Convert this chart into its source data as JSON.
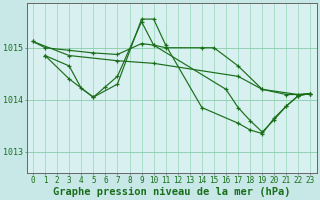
{
  "background_color": "#c8e8e8",
  "plot_bg_color": "#d8f0f0",
  "grid_color": "#88ccaa",
  "line_color": "#1a6e1a",
  "xlabel": "Graphe pression niveau de la mer (hPa)",
  "xlabel_fontsize": 7.5,
  "tick_fontsize": 6.0,
  "yticks": [
    1013,
    1014,
    1015
  ],
  "ylim": [
    1012.6,
    1015.85
  ],
  "xlim": [
    -0.5,
    23.5
  ],
  "xticks": [
    0,
    1,
    2,
    3,
    4,
    5,
    6,
    7,
    8,
    9,
    10,
    11,
    12,
    13,
    14,
    15,
    16,
    17,
    18,
    19,
    20,
    21,
    22,
    23
  ],
  "series": [
    {
      "x": [
        0,
        1,
        3,
        5,
        7,
        9,
        10,
        11,
        14,
        15,
        17,
        19,
        21,
        22,
        23
      ],
      "y": [
        1015.12,
        1015.0,
        1014.95,
        1014.9,
        1014.87,
        1015.08,
        1015.05,
        1015.0,
        1015.0,
        1015.0,
        1014.65,
        1014.2,
        1014.1,
        1014.1,
        1014.12
      ]
    },
    {
      "x": [
        1,
        3,
        5,
        7,
        9,
        10,
        11,
        14,
        17,
        18,
        19,
        20,
        21,
        22,
        23
      ],
      "y": [
        1014.85,
        1014.4,
        1014.05,
        1014.3,
        1015.55,
        1015.55,
        1015.05,
        1013.85,
        1013.55,
        1013.42,
        1013.35,
        1013.65,
        1013.88,
        1014.08,
        1014.12
      ]
    },
    {
      "x": [
        1,
        3,
        4,
        5,
        6,
        7,
        9,
        10,
        16,
        17,
        18,
        19,
        20,
        21,
        22,
        23
      ],
      "y": [
        1014.85,
        1014.65,
        1014.22,
        1014.05,
        1014.25,
        1014.45,
        1015.5,
        1015.05,
        1014.2,
        1013.85,
        1013.6,
        1013.38,
        1013.62,
        1013.88,
        1014.08,
        1014.12
      ]
    },
    {
      "x": [
        0,
        3,
        7,
        10,
        17,
        19,
        22,
        23
      ],
      "y": [
        1015.12,
        1014.85,
        1014.75,
        1014.7,
        1014.45,
        1014.2,
        1014.1,
        1014.12
      ]
    }
  ]
}
